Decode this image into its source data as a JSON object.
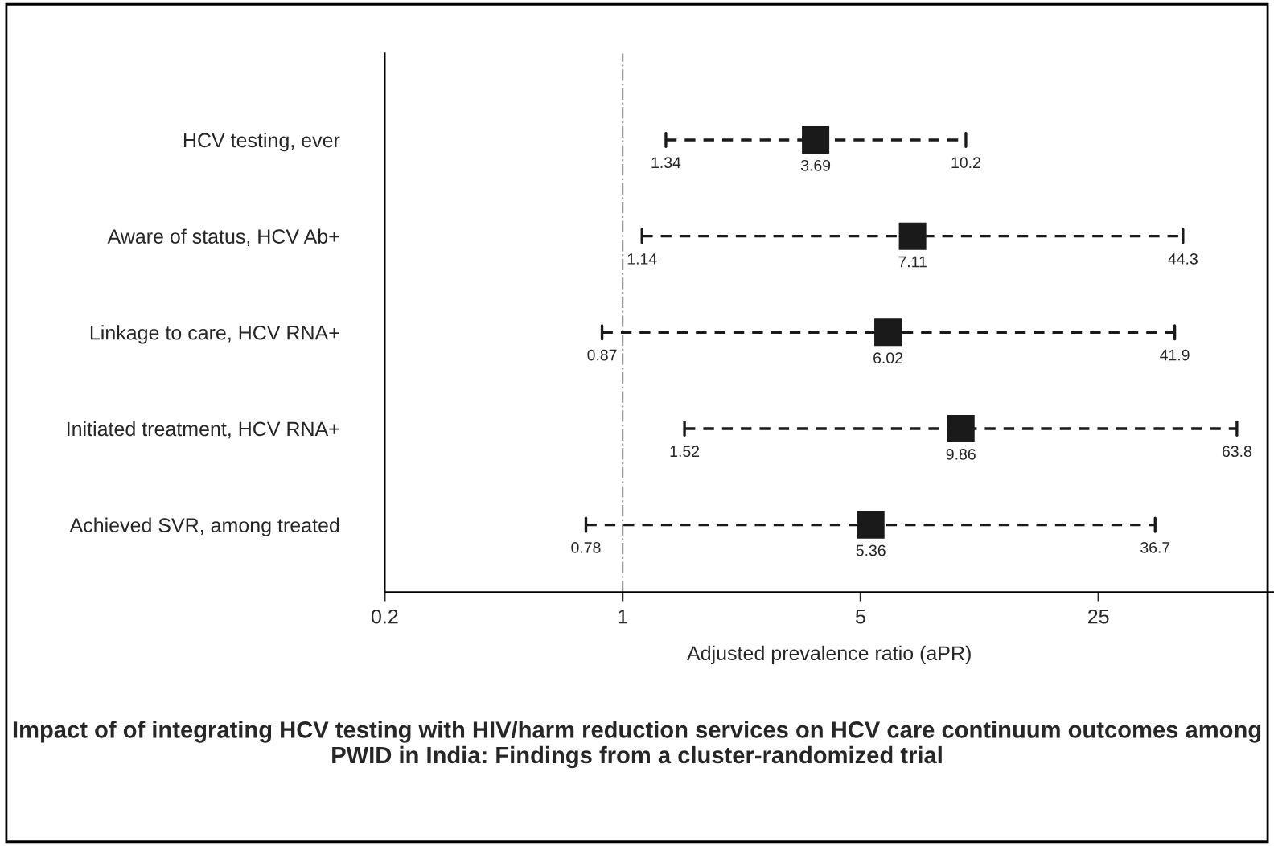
{
  "chart_data": {
    "type": "scatter",
    "orientation": "horizontal",
    "title": "Impact of of integrating HCV testing with HIV/harm reduction services on HCV care continuum outcomes among PWID in India: Findings from a cluster-randomized trial",
    "xlabel": "Adjusted prevalence ratio (aPR)",
    "categories": [
      "HCV testing, ever",
      "Aware of status, HCV Ab+",
      "Linkage to care, HCV RNA+",
      "Initiated treatment, HCV RNA+",
      "Achieved SVR, among treated"
    ],
    "values": [
      3.69,
      7.11,
      6.02,
      9.86,
      5.36
    ],
    "value_labels": [
      "3.69",
      "7.11",
      "6.02",
      "9.86",
      "5.36"
    ],
    "errors": [
      [
        1.34,
        10.2
      ],
      [
        1.14,
        44.3
      ],
      [
        0.87,
        41.9
      ],
      [
        1.52,
        63.8
      ],
      [
        0.78,
        36.7
      ]
    ],
    "annotations": [
      {
        "text": "1.34",
        "x": 1.34,
        "y": "HCV testing, ever"
      },
      {
        "text": "10.2",
        "x": 10.2,
        "y": "HCV testing, ever"
      },
      {
        "text": "1.14",
        "x": 1.14,
        "y": "Aware of status, HCV Ab+"
      },
      {
        "text": "44.3",
        "x": 44.3,
        "y": "Aware of status, HCV Ab+"
      },
      {
        "text": "0.87",
        "x": 0.87,
        "y": "Linkage to care, HCV RNA+"
      },
      {
        "text": "41.9",
        "x": 41.9,
        "y": "Linkage to care, HCV RNA+"
      },
      {
        "text": "1.52",
        "x": 1.52,
        "y": "Initiated treatment, HCV RNA+"
      },
      {
        "text": "63.8",
        "x": 63.8,
        "y": "Initiated treatment, HCV RNA+"
      },
      {
        "text": "0.78",
        "x": 0.78,
        "y": "Achieved SVR, among treated"
      },
      {
        "text": "36.7",
        "x": 36.7,
        "y": "Achieved SVR, among treated"
      }
    ],
    "color": "#1a1a1a",
    "marker": "square",
    "line_style": "dashed",
    "log": "x",
    "xlim": [
      0.2,
      82
    ],
    "xticks": [
      0.2,
      1,
      5,
      25
    ],
    "ref_lines": [
      {
        "axis": "x",
        "value": 1,
        "color": "#999999",
        "line_style": "dashdot"
      }
    ],
    "grid": false,
    "legend": false
  }
}
